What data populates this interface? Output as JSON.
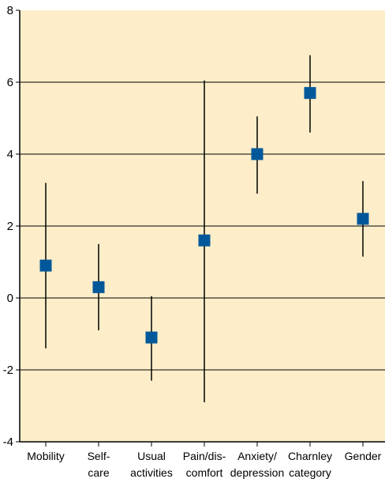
{
  "chart_data": {
    "type": "scatter",
    "title": "",
    "xlabel": "",
    "ylabel": "",
    "ylim": [
      -4,
      8
    ],
    "yticks": [
      -4,
      -2,
      0,
      2,
      4,
      6,
      8
    ],
    "grid": true,
    "legend": "none",
    "categories": [
      [
        "Mobility"
      ],
      [
        "Self-",
        "care"
      ],
      [
        "Usual",
        "activities"
      ],
      [
        "Pain/dis-",
        "comfort"
      ],
      [
        "Anxiety/",
        "depression"
      ],
      [
        "Charnley",
        "category"
      ],
      [
        "Gender"
      ]
    ],
    "series": [
      {
        "points": [
          {
            "value": 0.9,
            "lower": -1.4,
            "upper": 3.2
          },
          {
            "value": 0.3,
            "lower": -0.9,
            "upper": 1.5
          },
          {
            "value": -1.1,
            "lower": -2.3,
            "upper": 0.05
          },
          {
            "value": 1.6,
            "lower": -2.9,
            "upper": 6.05
          },
          {
            "value": 4.0,
            "lower": 2.9,
            "upper": 5.05
          },
          {
            "value": 5.7,
            "lower": 4.6,
            "upper": 6.75
          },
          {
            "value": 2.2,
            "lower": 1.15,
            "upper": 3.25
          }
        ]
      }
    ],
    "colors": {
      "plot_background": "#fdeec9",
      "marker": "#00589a",
      "error_bar": "#000000",
      "grid": "#000000"
    }
  }
}
